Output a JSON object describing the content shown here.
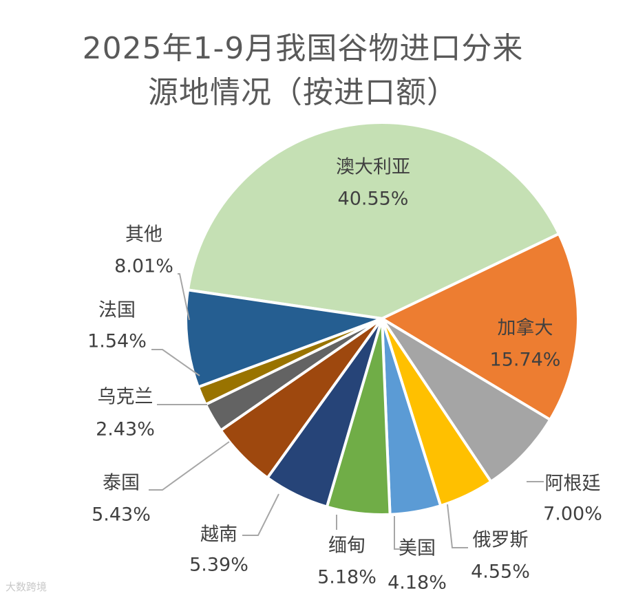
{
  "chart_data": {
    "type": "pie",
    "title_line1": "2025年1-9月我国谷物进口分来",
    "title_line2": "源地情况（按进口额）",
    "slices": [
      {
        "name": "澳大利亚",
        "value": 40.55,
        "label": "40.55%",
        "color": "#C5E0B4"
      },
      {
        "name": "加拿大",
        "value": 15.74,
        "label": "15.74%",
        "color": "#ED7D31"
      },
      {
        "name": "阿根廷",
        "value": 7.0,
        "label": "7.00%",
        "color": "#A5A5A5"
      },
      {
        "name": "俄罗斯",
        "value": 4.55,
        "label": "4.55%",
        "color": "#FFC000"
      },
      {
        "name": "美国",
        "value": 4.18,
        "label": "4.18%",
        "color": "#5B9BD5"
      },
      {
        "name": "缅甸",
        "value": 5.18,
        "label": "5.18%",
        "color": "#70AD47"
      },
      {
        "name": "越南",
        "value": 5.39,
        "label": "5.39%",
        "color": "#264478"
      },
      {
        "name": "泰国",
        "value": 5.43,
        "label": "5.43%",
        "color": "#9E480E"
      },
      {
        "name": "乌克兰",
        "value": 2.43,
        "label": "2.43%",
        "color": "#636363"
      },
      {
        "name": "法国",
        "value": 1.54,
        "label": "1.54%",
        "color": "#997300"
      },
      {
        "name": "其他",
        "value": 8.01,
        "label": "8.01%",
        "color": "#255E91"
      }
    ]
  },
  "watermark": "大数跨境"
}
